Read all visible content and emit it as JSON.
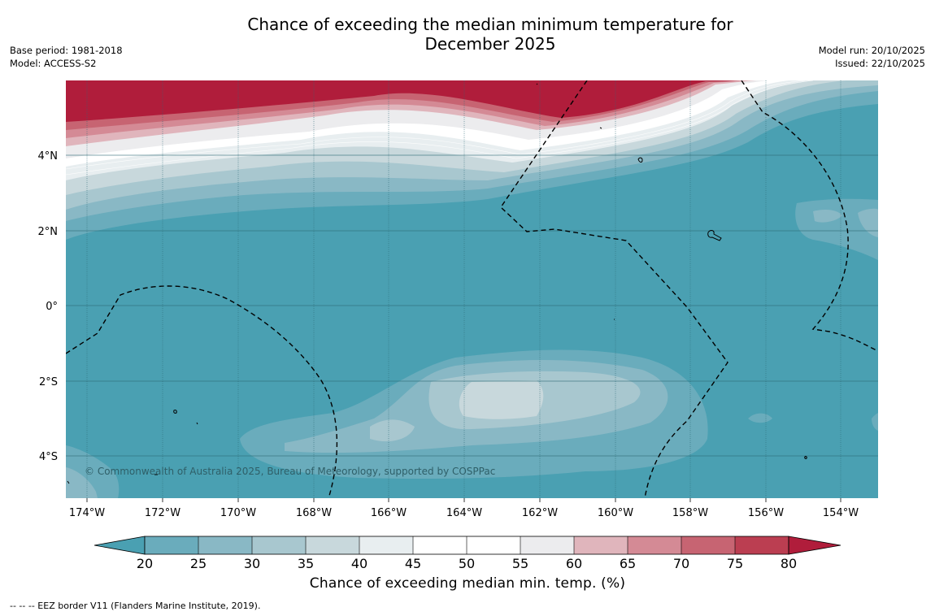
{
  "title_line1": "Chance of exceeding the median minimum temperature for",
  "title_line2": "December 2025",
  "meta_left": {
    "base_period": "Base period: 1981-2018",
    "model": "Model: ACCESS-S2"
  },
  "meta_right": {
    "model_run": "Model run: 20/10/2025",
    "issued": "Issued: 22/10/2025"
  },
  "copyright": "© Commonwealth of Australia 2025, Bureau of Meteorology, supported by COSPPac",
  "map": {
    "lon_ticks": [
      "174°W",
      "172°W",
      "170°W",
      "168°W",
      "166°W",
      "164°W",
      "162°W",
      "160°W",
      "158°W",
      "156°W",
      "154°W"
    ],
    "lat_ticks": [
      "4°N",
      "2°N",
      "0°",
      "2°S",
      "4°S"
    ]
  },
  "colorbar": {
    "ticks": [
      "20",
      "25",
      "30",
      "35",
      "40",
      "45",
      "50",
      "55",
      "60",
      "65",
      "70",
      "75",
      "80"
    ],
    "colors": [
      "#4aa0b2",
      "#6aacbc",
      "#89b8c5",
      "#a8c7cf",
      "#c8d8dc",
      "#e8eef0",
      "#ffffff",
      "#ffffff",
      "#ececee",
      "#e0b5bc",
      "#d48a95",
      "#c76472",
      "#bb3e51",
      "#b01d3b"
    ],
    "title": "Chance of exceeding median min. temp. (%)"
  },
  "footer": "--  --  -- EEZ border V11 (Flanders Marine Institute, 2019)."
}
